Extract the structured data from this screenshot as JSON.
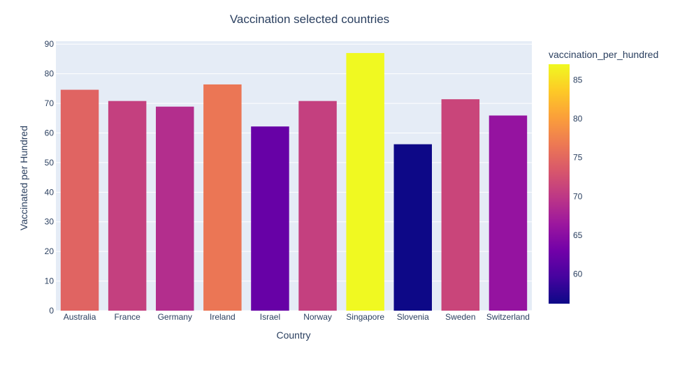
{
  "chart_data": {
    "type": "bar",
    "title": "Vaccination selected countries",
    "xlabel": "Country",
    "ylabel": "Vaccinated per Hundred",
    "categories": [
      "Australia",
      "France",
      "Germany",
      "Ireland",
      "Israel",
      "Norway",
      "Singapore",
      "Slovenia",
      "Sweden",
      "Switzerland"
    ],
    "values": [
      74.6,
      70.8,
      68.9,
      76.4,
      62.2,
      70.8,
      87.0,
      56.2,
      71.4,
      65.9
    ],
    "ylim": [
      0,
      91
    ],
    "yticks": [
      0,
      10,
      20,
      30,
      40,
      50,
      60,
      70,
      80,
      90
    ],
    "grid": true,
    "colorbar": {
      "title": "vaccination_per_hundred",
      "range": [
        56.2,
        87.0
      ],
      "ticks": [
        60,
        65,
        70,
        75,
        80,
        85
      ],
      "colorscale": [
        "#0d0887",
        "#46039f",
        "#7201a8",
        "#9c179e",
        "#bd3786",
        "#d8576b",
        "#ed7953",
        "#fb9f3a",
        "#fdca26",
        "#f0f921"
      ]
    },
    "colors": {
      "plot_bg": "#e5ecf6",
      "grid": "#ffffff",
      "text": "#2a3f5f"
    }
  }
}
